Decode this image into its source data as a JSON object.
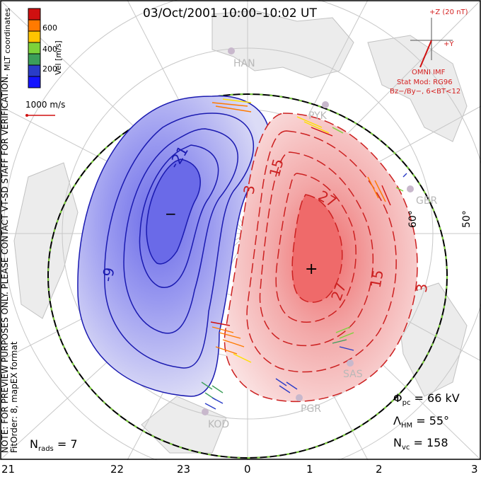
{
  "title": "03/Oct/2001  10:00–10:02 UT",
  "colorbar": {
    "title": "Vel [m/s]",
    "ticks": [
      "600",
      "400",
      "200"
    ],
    "colors": [
      "#d01010",
      "#ff7a00",
      "#ffe000",
      "#7cd23a",
      "#3c9e5a",
      "#2a3cc8",
      "#1414ff"
    ]
  },
  "mlt_label": "MLT coordinates",
  "side_note": "NOTE: FOR PREVIEW PURPOSES ONLY. PLEASE CONTACT VT-SD STAFF FOR VERIFICATION.",
  "fit_note": "FitOrder: 8, mapEX format",
  "scale_vector": "1000 m/s",
  "imf": {
    "z_label": "+Z (20 nT)",
    "y_label": "+Y",
    "title": "OMNI IMF",
    "stat_mod": "Stat Mod: RG96",
    "condition": "Bz−/By−, 6<BT<12"
  },
  "stations": [
    "HAN",
    "PYK",
    "GBR",
    "SAS",
    "PGR",
    "KOD"
  ],
  "latitude_labels": [
    "60°",
    "50°"
  ],
  "contours": {
    "negative": [
      "-21",
      "-9"
    ],
    "positive": [
      "3",
      "15",
      "27",
      "27",
      "15",
      "3"
    ],
    "min_marker": "−",
    "max_marker": "+"
  },
  "stats": {
    "phi_symbol": "Φ",
    "phi_sub": "pc",
    "phi_value": " = 66 kV",
    "lambda_symbol": "Λ",
    "lambda_sub": "HM",
    "lambda_value": " = 55°",
    "nvc_symbol": "N",
    "nvc_sub": "vc",
    "nvc_value": " = 158",
    "nrads_symbol": "N",
    "nrads_sub": "rads",
    "nrads_value": " = 7"
  },
  "mlt_axis": [
    "21",
    "22",
    "23",
    "0",
    "1",
    "2",
    "3"
  ]
}
